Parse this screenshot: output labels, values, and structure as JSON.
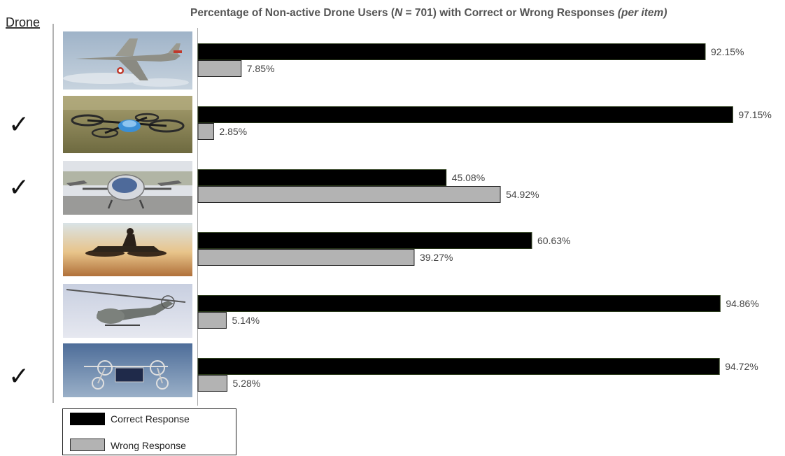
{
  "chart_data": {
    "type": "bar",
    "orientation": "horizontal",
    "title_parts": {
      "before": "Percentage of Non-active Drone Users (",
      "n_symbol": "N",
      "n_value": " = 701) with Correct or Wrong Responses ",
      "suffix": "(per item)"
    },
    "row_header": "Drone",
    "xlim": [
      0,
      100
    ],
    "grid": false,
    "legend_position": "bottom-left",
    "categories": [
      {
        "image": "fighter-jet",
        "checked": false
      },
      {
        "image": "quadcopter-drone",
        "checked": true
      },
      {
        "image": "passenger-drone",
        "checked": true
      },
      {
        "image": "hoverbike",
        "checked": false
      },
      {
        "image": "helicopter",
        "checked": false
      },
      {
        "image": "cargo-vtol-drone",
        "checked": true
      }
    ],
    "series": [
      {
        "name": "Correct Response",
        "color": "#000000",
        "values": [
          92.15,
          97.15,
          45.08,
          60.63,
          94.86,
          94.72
        ],
        "labels": [
          "92.15%",
          "97.15%",
          "45.08%",
          "60.63%",
          "94.86%",
          "94.72%"
        ]
      },
      {
        "name": "Wrong Response",
        "color": "#b3b3b3",
        "values": [
          7.85,
          2.85,
          54.92,
          39.27,
          5.14,
          5.28
        ],
        "labels": [
          "7.85%",
          "2.85%",
          "54.92%",
          "39.27%",
          "5.14%",
          "5.28%"
        ]
      }
    ],
    "check_symbol": "✓"
  }
}
